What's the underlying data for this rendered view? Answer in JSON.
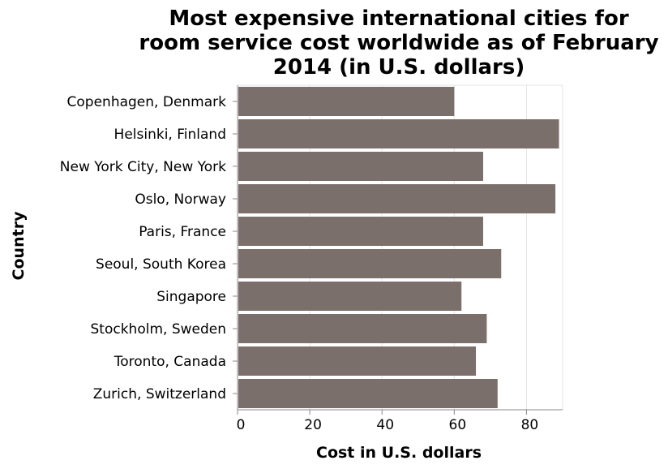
{
  "chart_data": {
    "type": "bar",
    "orientation": "horizontal",
    "title_lines": [
      "Most expensive international cities for",
      "room service cost worldwide as of February",
      "2014 (in U.S. dollars)"
    ],
    "xlabel": "Cost in U.S. dollars",
    "ylabel": "Country",
    "xlim": [
      0,
      90
    ],
    "x_ticks": [
      0,
      20,
      40,
      60,
      80
    ],
    "grid": true,
    "legend": "none",
    "bar_color": "#7b6f6c",
    "categories": [
      "Copenhagen, Denmark",
      "Helsinki, Finland",
      "New York City, New York",
      "Oslo, Norway",
      "Paris, France",
      "Seoul, South Korea",
      "Singapore",
      "Stockholm, Sweden",
      "Toronto, Canada",
      "Zurich, Switzerland"
    ],
    "values": [
      60,
      89,
      68,
      88,
      68,
      73,
      62,
      69,
      66,
      72
    ]
  }
}
